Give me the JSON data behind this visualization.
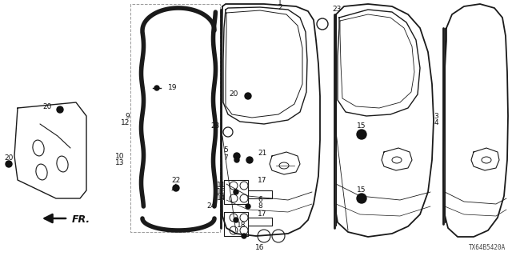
{
  "background_color": "#ffffff",
  "diagram_code": "TX64B5420A",
  "arrow_label": "FR.",
  "line_color": "#1a1a1a",
  "dot_color": "#111111",
  "text_color": "#111111",
  "font_size": 6.5,
  "figsize": [
    6.4,
    3.2
  ],
  "dpi": 100
}
